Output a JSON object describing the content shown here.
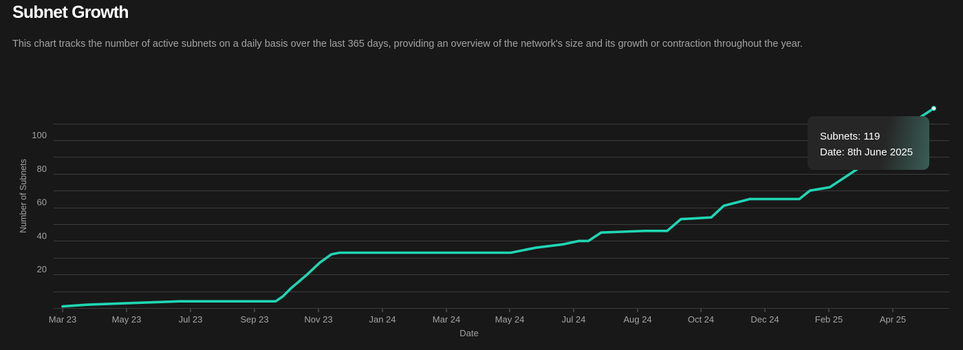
{
  "page": {
    "title": "Subnet Growth",
    "subtitle": "This chart tracks the number of active subnets on a daily basis over the last 365 days, providing an overview of the network's size and its growth or contraction throughout the year."
  },
  "colors": {
    "background": "#181818",
    "line": "#1fd6b4",
    "grid": "#3d3d3d",
    "axis_text": "#a3a3a3"
  },
  "tooltip": {
    "subnets_label": "Subnets: 119",
    "date_label": "Date: 8th June 2025"
  },
  "chart_data": {
    "type": "line",
    "xlabel": "Date",
    "ylabel": "Number of Subnets",
    "x_ticks": [
      "Mar 23",
      "May 23",
      "Jul 23",
      "Sep 23",
      "Nov 23",
      "Jan 24",
      "Mar 24",
      "May 24",
      "Jul 24",
      "Aug 24",
      "Oct 24",
      "Dec 24",
      "Feb 25",
      "Apr 25"
    ],
    "y_ticks": [
      20,
      40,
      60,
      80,
      100
    ],
    "ylim": [
      0,
      110
    ],
    "grid": true,
    "legend": "none",
    "series": [
      {
        "x": [
          "2023-03-01",
          "2023-03-25",
          "2023-05-06",
          "2023-06-20",
          "2023-09-20",
          "2023-09-27",
          "2023-10-05",
          "2023-10-20",
          "2023-11-01",
          "2023-11-12",
          "2023-11-20",
          "2024-05-01",
          "2024-05-25",
          "2024-06-20",
          "2024-07-05",
          "2024-07-14",
          "2024-07-26",
          "2024-09-05",
          "2024-09-27",
          "2024-10-10",
          "2024-11-08",
          "2024-11-20",
          "2024-12-15",
          "2025-01-31",
          "2025-02-10",
          "2025-03-01",
          "2025-03-30",
          "2025-04-25",
          "2025-06-08"
        ],
        "y": [
          1,
          2,
          3,
          4,
          4,
          7,
          12,
          20,
          27,
          32,
          33,
          33,
          36,
          38,
          40,
          40,
          45,
          46,
          46,
          53,
          54,
          61,
          65,
          65,
          70,
          72,
          84,
          101,
          119
        ]
      }
    ]
  }
}
